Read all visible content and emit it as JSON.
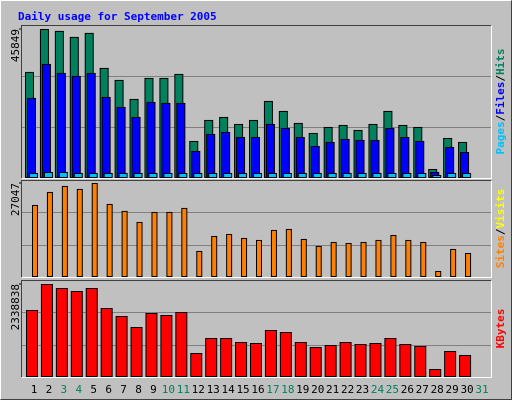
{
  "chart_data": {
    "type": "bar",
    "title": "Daily usage for September 2005",
    "categories": [
      "1",
      "2",
      "3",
      "4",
      "5",
      "6",
      "7",
      "8",
      "9",
      "10",
      "11",
      "12",
      "13",
      "14",
      "15",
      "16",
      "17",
      "18",
      "19",
      "20",
      "21",
      "22",
      "23",
      "24",
      "25",
      "26",
      "27",
      "28",
      "29",
      "30",
      "31"
    ],
    "category_colors": [
      "#000000",
      "#000000",
      "#00805c",
      "#00805c",
      "#000000",
      "#000000",
      "#000000",
      "#000000",
      "#000000",
      "#00805c",
      "#00805c",
      "#000000",
      "#000000",
      "#000000",
      "#000000",
      "#000000",
      "#00805c",
      "#00805c",
      "#000000",
      "#000000",
      "#000000",
      "#000000",
      "#000000",
      "#00805c",
      "#00805c",
      "#000000",
      "#000000",
      "#000000",
      "#000000",
      "#000000",
      "#00805c"
    ],
    "legend_separator": "/",
    "panels": [
      {
        "ylim": [
          0,
          45849
        ],
        "yticks": [
          45849
        ],
        "series": [
          {
            "name": "Pages",
            "color": "#00c0ff",
            "values": [
              1240,
              1550,
              1550,
              1240,
              1240,
              1240,
              1240,
              1240,
              1240,
              1240,
              1240,
              1240,
              1240,
              1240,
              1240,
              1240,
              1240,
              1240,
              1240,
              1240,
              1240,
              1240,
              1240,
              1240,
              1240,
              1240,
              1240,
              620,
              1240,
              1240,
              0
            ]
          },
          {
            "name": "Files",
            "color": "#0000ff",
            "values": [
              24490,
              35030,
              32240,
              31310,
              32240,
              24800,
              21700,
              18600,
              23250,
              22940,
              22940,
              8060,
              13330,
              13950,
              12400,
              12400,
              16430,
              15190,
              12400,
              9610,
              10850,
              11780,
              11470,
              11470,
              15190,
              12400,
              11160,
              1550,
              9300,
              7750,
              0
            ]
          },
          {
            "name": "Hits",
            "color": "#00805c",
            "values": [
              32550,
              45849,
              45260,
              43400,
              44640,
              33790,
              30070,
              24180,
              30690,
              30690,
              31930,
              11160,
              17670,
              18600,
              16430,
              17670,
              23560,
              20460,
              16740,
              13640,
              15500,
              16120,
              14570,
              16430,
              20460,
              16120,
              15500,
              2480,
              12090,
              10850,
              0
            ]
          }
        ]
      },
      {
        "ylim": [
          0,
          27047
        ],
        "yticks": [
          27047
        ],
        "series": [
          {
            "name": "Sites",
            "color": "#ff8000",
            "values": [
              20660,
              24440,
              26190,
              25320,
              27047,
              20950,
              18920,
              15710,
              18620,
              18620,
              19790,
              7280,
              11640,
              12220,
              11060,
              10480,
              13390,
              13680,
              10770,
              8730,
              9890,
              9600,
              9890,
              10480,
              11930,
              10480,
              9890,
              1460,
              7860,
              6690,
              0
            ]
          },
          {
            "name": "Visits",
            "color": "#ffff00",
            "values": [
              0,
              0,
              0,
              0,
              0,
              0,
              0,
              0,
              0,
              0,
              0,
              0,
              0,
              0,
              0,
              0,
              0,
              0,
              0,
              0,
              0,
              0,
              0,
              0,
              0,
              0,
              0,
              0,
              0,
              0,
              0
            ]
          }
        ]
      },
      {
        "ylim": [
          0,
          2338838
        ],
        "yticks": [
          2338838
        ],
        "series": [
          {
            "name": "KBytes",
            "color": "#ff0000",
            "values": [
              1677850,
              2338838,
              2237140,
              2160870,
              2237140,
              1728700,
              1525320,
              1245680,
              1601590,
              1550740,
              1627010,
              584710,
              966040,
              966040,
              864350,
              838930,
              1169410,
              1118570,
              864350,
              737240,
              788080,
              864350,
              813500,
              838930,
              966040,
              813500,
              762660,
              177950,
              635550,
              533860,
              0
            ]
          }
        ]
      }
    ]
  }
}
